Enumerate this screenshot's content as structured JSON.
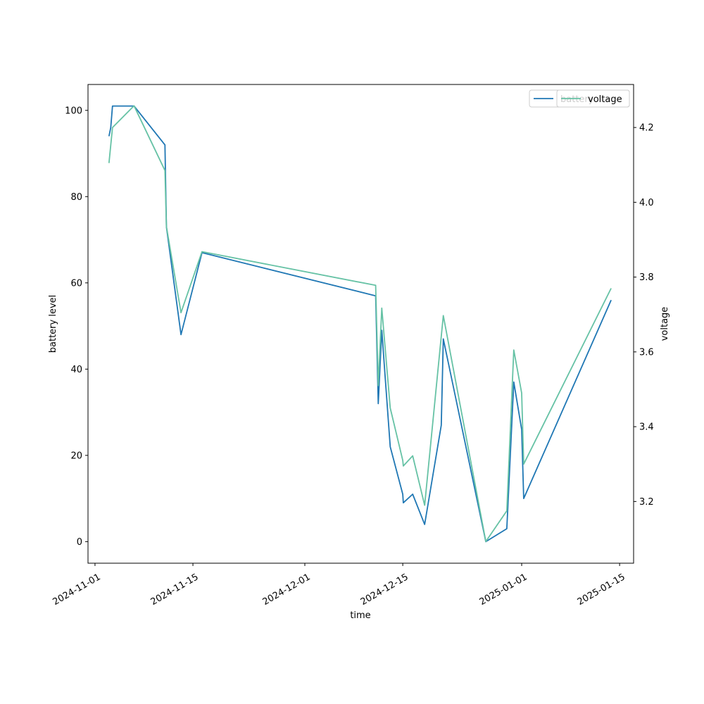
{
  "chart_data": {
    "type": "line",
    "title": "",
    "xlabel": "time",
    "ylabel_left": "battery level",
    "ylabel_right": "voltage",
    "xlim": [
      "2024-10-31",
      "2025-01-17"
    ],
    "ylim_left": [
      -5,
      106
    ],
    "ylim_right": [
      3.035,
      4.315
    ],
    "x_ticks": [
      "2024-11-01",
      "2024-11-15",
      "2024-12-01",
      "2024-12-15",
      "2025-01-01",
      "2025-01-15"
    ],
    "y_ticks_left": [
      0,
      20,
      40,
      60,
      80,
      100
    ],
    "y_ticks_right": [
      3.2,
      3.4,
      3.6,
      3.8,
      4.0,
      4.2
    ],
    "legend_placement": "top-right",
    "series": [
      {
        "name": "battery",
        "axis": "left",
        "color": "#1f77b4",
        "points": [
          [
            "2024-11-03T00:00",
            94
          ],
          [
            "2024-11-03T06:00",
            96
          ],
          [
            "2024-11-03T12:00",
            101
          ],
          [
            "2024-11-06T14:00",
            101
          ],
          [
            "2024-11-11T00:00",
            92
          ],
          [
            "2024-11-11T05:00",
            73
          ],
          [
            "2024-11-13T07:00",
            48
          ],
          [
            "2024-11-16T07:00",
            67
          ],
          [
            "2024-12-11T03:00",
            57
          ],
          [
            "2024-12-11T12:00",
            32
          ],
          [
            "2024-12-12T00:00",
            49
          ],
          [
            "2024-12-13T05:00",
            22
          ],
          [
            "2024-12-15T00:00",
            11
          ],
          [
            "2024-12-15T02:00",
            9
          ],
          [
            "2024-12-16T10:00",
            11
          ],
          [
            "2024-12-18T03:00",
            4
          ],
          [
            "2024-12-20T12:00",
            27
          ],
          [
            "2024-12-20T19:00",
            47
          ],
          [
            "2024-12-26T21:00",
            0
          ],
          [
            "2024-12-29T21:00",
            3
          ],
          [
            "2024-12-30T21:00",
            37
          ],
          [
            "2025-01-01T00:00",
            26
          ],
          [
            "2025-01-01T07:00",
            10
          ],
          [
            "2025-01-13T19:00",
            56
          ]
        ]
      },
      {
        "name": "voltage",
        "axis": "right",
        "color": "#66c2a5",
        "points": [
          [
            "2024-11-03T00:00",
            4.105
          ],
          [
            "2024-11-03T12:00",
            4.2
          ],
          [
            "2024-11-06T14:00",
            4.258
          ],
          [
            "2024-11-11T00:00",
            4.085
          ],
          [
            "2024-11-11T05:00",
            3.935
          ],
          [
            "2024-11-13T07:00",
            3.705
          ],
          [
            "2024-11-16T07:00",
            3.868
          ],
          [
            "2024-12-11T03:00",
            3.778
          ],
          [
            "2024-12-11T12:00",
            3.51
          ],
          [
            "2024-12-12T00:00",
            3.717
          ],
          [
            "2024-12-13T05:00",
            3.45
          ],
          [
            "2024-12-15T00:00",
            3.31
          ],
          [
            "2024-12-15T02:00",
            3.295
          ],
          [
            "2024-12-16T10:00",
            3.322
          ],
          [
            "2024-12-18T03:00",
            3.19
          ],
          [
            "2024-12-20T19:00",
            3.697
          ],
          [
            "2024-12-26T21:00",
            3.093
          ],
          [
            "2024-12-29T21:00",
            3.175
          ],
          [
            "2024-12-30T21:00",
            3.605
          ],
          [
            "2025-01-01T00:00",
            3.49
          ],
          [
            "2025-01-01T07:00",
            3.3
          ],
          [
            "2025-01-13T19:00",
            3.77
          ]
        ]
      }
    ]
  }
}
